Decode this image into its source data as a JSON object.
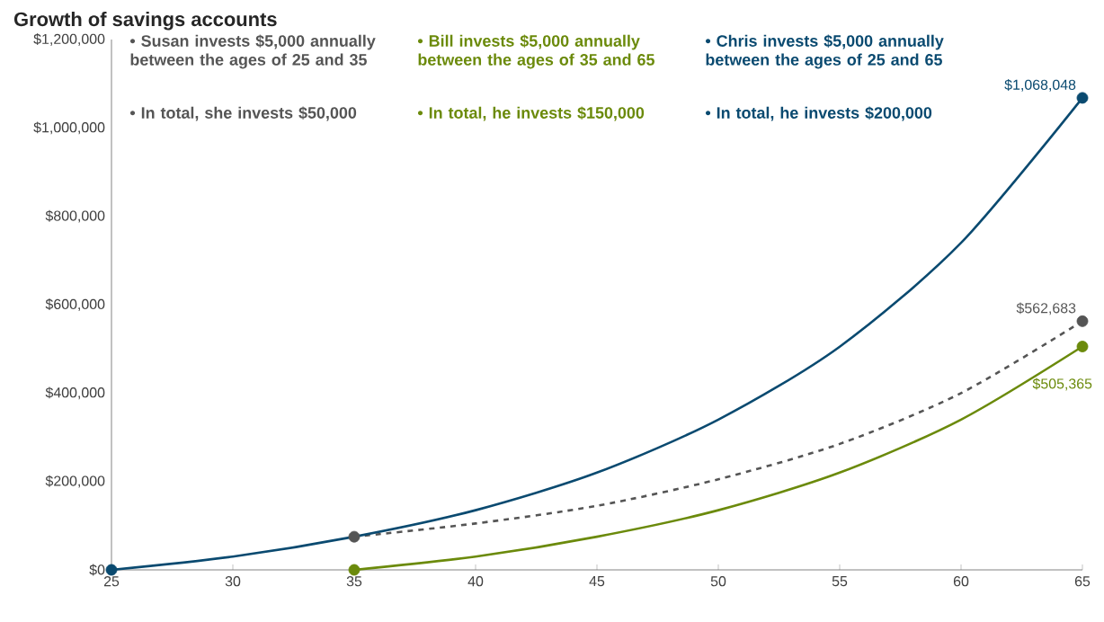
{
  "chart_data": {
    "type": "line",
    "title": "Growth of savings accounts",
    "series": [
      {
        "color": "#555555",
        "line_style": "dashed",
        "x": [
          35,
          40,
          45,
          50,
          55,
          60,
          65
        ],
        "values": [
          75000,
          105000,
          145000,
          205000,
          285000,
          400000,
          562683
        ],
        "value_labels": [
          null,
          null,
          null,
          null,
          null,
          null,
          "$562,683"
        ]
      },
      {
        "color": "#6b8a0b",
        "line_style": "solid",
        "x": [
          35,
          40,
          45,
          50,
          55,
          60,
          65
        ],
        "values": [
          0,
          30000,
          75000,
          135000,
          220000,
          340000,
          505365
        ],
        "value_labels": [
          null,
          null,
          null,
          null,
          null,
          null,
          "$505,365"
        ]
      },
      {
        "color": "#0a4a70",
        "line_style": "solid",
        "x": [
          25,
          30,
          35,
          40,
          45,
          50,
          55,
          60,
          65
        ],
        "values": [
          0,
          30000,
          75000,
          135000,
          220000,
          340000,
          505000,
          740000,
          1068048
        ],
        "value_labels": [
          null,
          null,
          null,
          null,
          null,
          null,
          null,
          null,
          "$1,068,048"
        ]
      }
    ],
    "xlim": [
      25,
      65
    ],
    "xticks": [
      25,
      30,
      35,
      40,
      45,
      50,
      55,
      60,
      65
    ],
    "ylim": [
      0,
      1200000
    ],
    "yticks": [
      {
        "value": 0,
        "label": "$0"
      },
      {
        "value": 200000,
        "label": "$200,000"
      },
      {
        "value": 400000,
        "label": "$400,000"
      },
      {
        "value": 600000,
        "label": "$600,000"
      },
      {
        "value": 800000,
        "label": "$800,000"
      },
      {
        "value": 1000000,
        "label": "$1,000,000"
      },
      {
        "value": 1200000,
        "label": "$1,200,000"
      }
    ],
    "grid": false,
    "annotations": [
      "• Susan invests $5,000 annually between the ages of 25 and 35",
      "• In total, she invests $50,000",
      "• Bill invests $5,000 annually between the ages of 35 and 65",
      "• In total, he invests $150,000",
      "• Chris invests $5,000 annually between the ages of 25 and 65",
      "• In total, he invests $200,000"
    ]
  }
}
